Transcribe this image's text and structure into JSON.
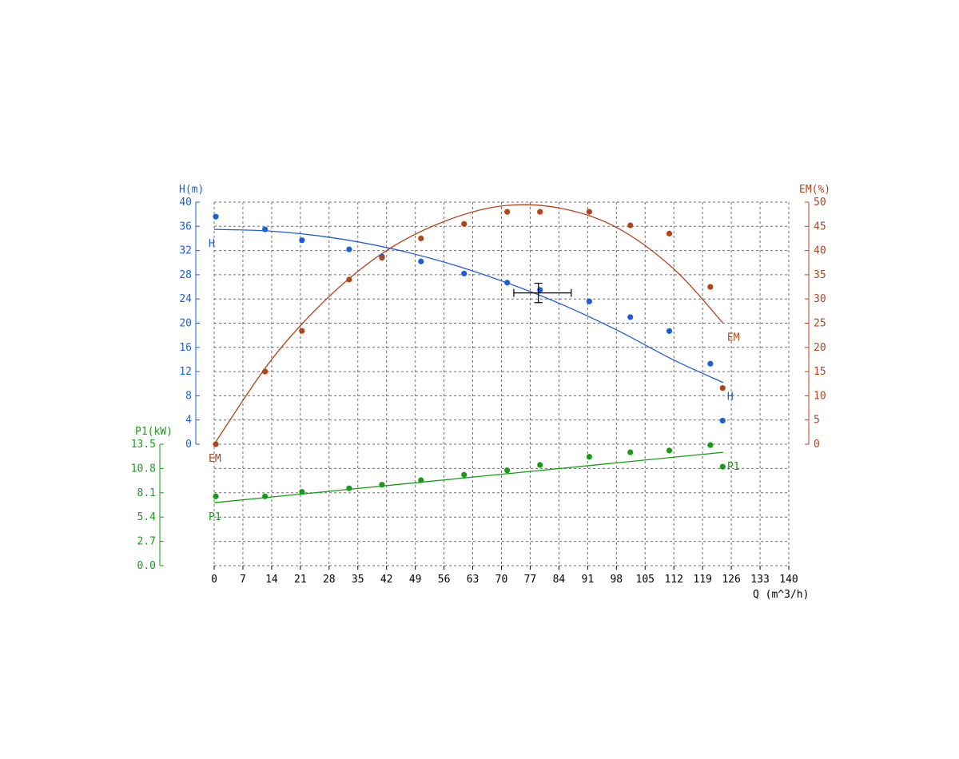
{
  "chart_data": {
    "type": "scatter",
    "colors": {
      "H": "#1f5fd6",
      "EM": "#b2441a",
      "P1": "#1a9a1a",
      "axis": "#000000",
      "grid": "#6e6e6e"
    },
    "x_axis": {
      "label": "Q (m^3/h)",
      "range": [
        0,
        140
      ],
      "ticks": [
        "0",
        "7",
        "14",
        "21",
        "28",
        "35",
        "42",
        "49",
        "56",
        "63",
        "70",
        "77",
        "84",
        "91",
        "98",
        "105",
        "112",
        "119",
        "126",
        "133",
        "140"
      ]
    },
    "h_axis": {
      "label": "H(m)",
      "range": [
        0,
        40
      ],
      "ticks": [
        "0",
        "4",
        "8",
        "12",
        "16",
        "20",
        "24",
        "28",
        "32",
        "36",
        "40"
      ]
    },
    "em_axis": {
      "label": "EM(%)",
      "range": [
        0,
        50
      ],
      "ticks": [
        "0",
        "5",
        "10",
        "15",
        "20",
        "25",
        "30",
        "35",
        "40",
        "45",
        "50"
      ]
    },
    "p1_axis": {
      "label": "P1(kW)",
      "range": [
        0,
        13.5
      ],
      "ticks": [
        "0.0",
        "2.7",
        "5.4",
        "8.1",
        "10.8",
        "13.5"
      ]
    },
    "series": [
      {
        "name": "H",
        "axis": "h_axis",
        "points": [
          [
            0,
            37.6
          ],
          [
            12,
            35.5
          ],
          [
            21,
            33.7
          ],
          [
            32.5,
            32.2
          ],
          [
            40.5,
            31.0
          ],
          [
            50,
            30.2
          ],
          [
            60.5,
            28.2
          ],
          [
            71,
            26.7
          ],
          [
            79,
            25.5
          ],
          [
            91,
            23.6
          ],
          [
            101,
            21.0
          ],
          [
            110.5,
            18.7
          ],
          [
            120.5,
            13.3
          ],
          [
            123.5,
            3.9
          ]
        ],
        "curve": [
          [
            0,
            35.5
          ],
          [
            14,
            35.2
          ],
          [
            28,
            34.2
          ],
          [
            42,
            32.5
          ],
          [
            56,
            30.1
          ],
          [
            70,
            27.0
          ],
          [
            84,
            23.3
          ],
          [
            98,
            18.9
          ],
          [
            112,
            13.9
          ],
          [
            124,
            10.2
          ]
        ],
        "curve_labels": [
          {
            "text": "H",
            "x": 0,
            "y": 35.5
          },
          {
            "text": "H",
            "x": 124,
            "y": 10.2
          }
        ]
      },
      {
        "name": "EM",
        "axis": "em_axis",
        "points": [
          [
            0,
            0
          ],
          [
            12,
            15.0
          ],
          [
            21,
            23.4
          ],
          [
            32.5,
            34.0
          ],
          [
            40.5,
            38.5
          ],
          [
            50,
            42.5
          ],
          [
            60.5,
            45.5
          ],
          [
            71,
            48.0
          ],
          [
            79,
            48.0
          ],
          [
            91,
            48.0
          ],
          [
            101,
            45.2
          ],
          [
            110.5,
            43.5
          ],
          [
            120.5,
            32.5
          ],
          [
            123.5,
            11.6
          ]
        ],
        "curve": [
          [
            0,
            0
          ],
          [
            14,
            17.5
          ],
          [
            28,
            30.5
          ],
          [
            42,
            40.0
          ],
          [
            56,
            46.0
          ],
          [
            70,
            49.2
          ],
          [
            84,
            48.8
          ],
          [
            98,
            44.8
          ],
          [
            112,
            36.2
          ],
          [
            124,
            25.0
          ]
        ],
        "curve_labels": [
          {
            "text": "EM",
            "x": 0,
            "y": 0
          },
          {
            "text": "EM",
            "x": 124,
            "y": 25.0
          }
        ]
      },
      {
        "name": "P1",
        "axis": "p1_axis",
        "points": [
          [
            0,
            7.7
          ],
          [
            12,
            7.7
          ],
          [
            21,
            8.2
          ],
          [
            32.5,
            8.6
          ],
          [
            40.5,
            9.0
          ],
          [
            50,
            9.5
          ],
          [
            60.5,
            10.1
          ],
          [
            71,
            10.6
          ],
          [
            79,
            11.2
          ],
          [
            91,
            12.1
          ],
          [
            101,
            12.6
          ],
          [
            110.5,
            12.8
          ],
          [
            120.5,
            13.4
          ],
          [
            123.5,
            11.0
          ]
        ],
        "curve": [
          [
            0,
            7.0
          ],
          [
            124,
            12.6
          ]
        ],
        "curve_labels": [
          {
            "text": "P1",
            "x": 0,
            "y": 7.0
          },
          {
            "text": "P1",
            "x": 124,
            "y": 12.6
          }
        ]
      }
    ],
    "duty_point": {
      "q": 79,
      "h": 25.0,
      "q_err": [
        73,
        87
      ],
      "h_err": [
        23.4,
        26.6
      ]
    },
    "grid": true
  }
}
